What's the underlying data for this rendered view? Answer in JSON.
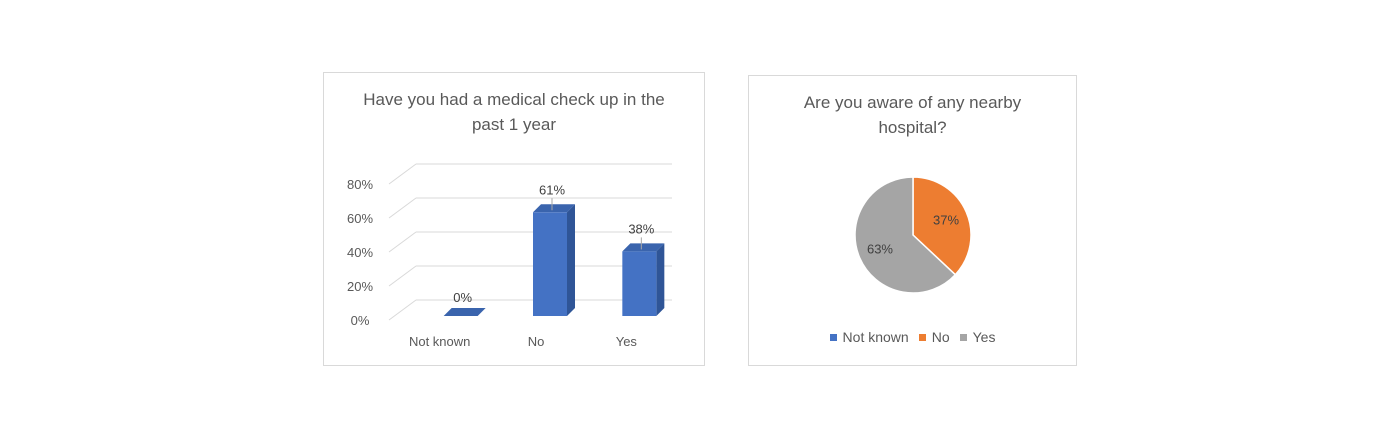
{
  "chart_data": [
    {
      "type": "bar",
      "title": "Have you had a medical check up in the past 1 year",
      "categories": [
        "Not known",
        "No",
        "Yes"
      ],
      "values": [
        0,
        61,
        38
      ],
      "data_labels": [
        "0%",
        "61%",
        "38%"
      ],
      "ylim": [
        0,
        0.8
      ],
      "y_ticks": [
        "0%",
        "20%",
        "40%",
        "60%",
        "80%"
      ],
      "grid": true,
      "style": "3d-column",
      "color": "#4472c4"
    },
    {
      "type": "pie",
      "title": "Are you aware of any nearby hospital?",
      "categories": [
        "Not known",
        "No",
        "Yes"
      ],
      "values": [
        0,
        37,
        63
      ],
      "data_labels": [
        "",
        "37%",
        "63%"
      ],
      "colors": [
        "#4472c4",
        "#ed7d31",
        "#a5a5a5"
      ],
      "legend_position": "bottom"
    }
  ]
}
